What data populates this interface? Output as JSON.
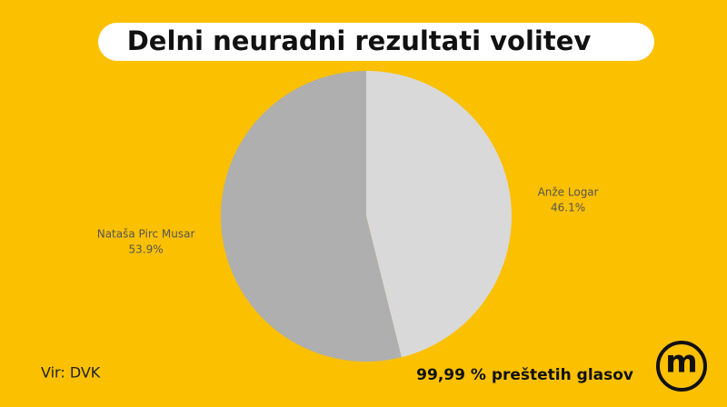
{
  "chart_data": {
    "type": "pie",
    "title": "Delni neuradni rezultati volitev",
    "categories": [
      "Anže Logar",
      "Nataša Pirc Musar"
    ],
    "values": [
      46.1,
      53.9
    ],
    "value_labels": [
      "46.1%",
      "53.9%"
    ],
    "colors": [
      "#d9d9d9",
      "#afafaf"
    ],
    "source": "Vir: DVK",
    "note": "99,99 % preštetih glasov",
    "logo": "m"
  }
}
